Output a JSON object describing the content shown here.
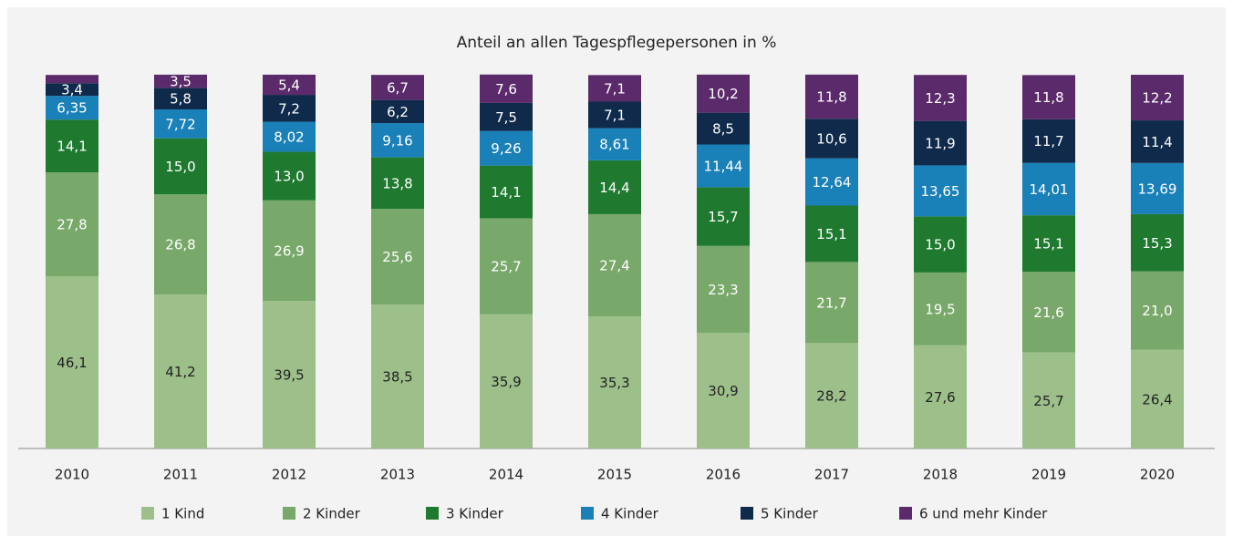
{
  "chart_data": {
    "type": "stacked_bar",
    "title": "Anteil an allen Tagespflegepersonen in %",
    "categories": [
      "2010",
      "2011",
      "2012",
      "2013",
      "2014",
      "2015",
      "2016",
      "2017",
      "2018",
      "2019",
      "2020"
    ],
    "ylim": [
      0,
      100
    ],
    "series": [
      {
        "name": "1 Kind",
        "color": "#9dc08b",
        "values": [
          46.1,
          41.2,
          39.5,
          38.5,
          35.9,
          35.3,
          30.9,
          28.2,
          27.6,
          25.7,
          26.4
        ],
        "value_labels": [
          "46,1",
          "41,2",
          "39,5",
          "38,5",
          "35,9",
          "35,3",
          "30,9",
          "28,2",
          "27,6",
          "25,7",
          "26,4"
        ]
      },
      {
        "name": "2 Kinder",
        "color": "#78a86a",
        "values": [
          27.8,
          26.8,
          26.9,
          25.6,
          25.7,
          27.4,
          23.3,
          21.7,
          19.5,
          21.6,
          21.0
        ],
        "value_labels": [
          "27,8",
          "26,8",
          "26,9",
          "25,6",
          "25,7",
          "27,4",
          "23,3",
          "21,7",
          "19,5",
          "21,6",
          "21,0"
        ]
      },
      {
        "name": "3 Kinder",
        "color": "#1f7a30",
        "values": [
          14.1,
          15.0,
          13.0,
          13.8,
          14.1,
          14.4,
          15.7,
          15.1,
          15.0,
          15.1,
          15.3
        ],
        "value_labels": [
          "14,1",
          "15,0",
          "13,0",
          "13,8",
          "14,1",
          "14,4",
          "15,7",
          "15,1",
          "15,0",
          "15,1",
          "15,3"
        ]
      },
      {
        "name": "4 Kinder",
        "color": "#1a80b8",
        "values": [
          6.35,
          7.72,
          8.02,
          9.16,
          9.26,
          8.61,
          11.44,
          12.64,
          13.65,
          14.01,
          13.69
        ],
        "value_labels": [
          "6,35",
          "7,72",
          "8,02",
          "9,16",
          "9,26",
          "8,61",
          "11,44",
          "12,64",
          "13,65",
          "14,01",
          "13,69"
        ]
      },
      {
        "name": "5 Kinder",
        "color": "#0f2a4a",
        "values": [
          3.4,
          5.8,
          7.2,
          6.2,
          7.5,
          7.1,
          8.5,
          10.6,
          11.9,
          11.7,
          11.4
        ],
        "value_labels": [
          "3,4",
          "5,8",
          "7,2",
          "6,2",
          "7,5",
          "7,1",
          "8,5",
          "10,6",
          "11,9",
          "11,7",
          "11,4"
        ]
      },
      {
        "name": "6 und mehr Kinder",
        "color": "#5b2a6b",
        "values": [
          2.2,
          3.5,
          5.4,
          6.7,
          7.6,
          7.1,
          10.2,
          11.8,
          12.3,
          11.8,
          12.2
        ],
        "value_labels": [
          null,
          "3,5",
          "5,4",
          "6,7",
          "7,6",
          "7,1",
          "10,2",
          "11,8",
          "12,3",
          "11,8",
          "12,2"
        ]
      }
    ]
  }
}
